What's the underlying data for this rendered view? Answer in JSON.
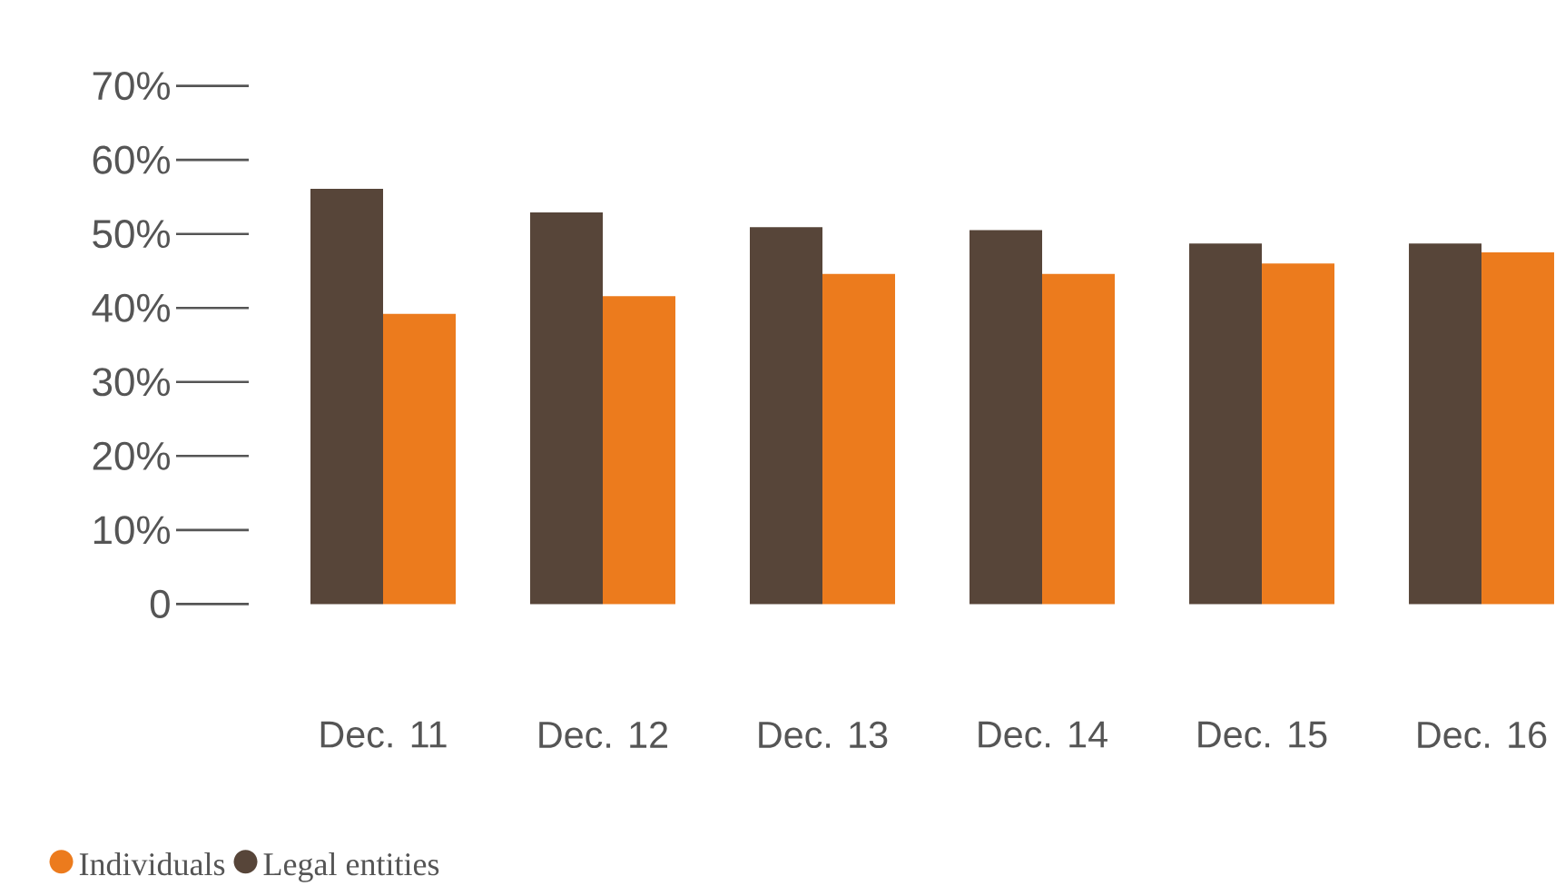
{
  "chart_data": {
    "type": "bar",
    "categories": [
      "Dec. 11",
      "Dec. 12",
      "Dec. 13",
      "Dec. 14",
      "Dec. 15",
      "Dec. 16"
    ],
    "series": [
      {
        "name": "Legal entities",
        "color": "#574539",
        "values": [
          56.1,
          52.9,
          50.9,
          50.5,
          48.7,
          48.7
        ]
      },
      {
        "name": "Individuals",
        "color": "#ec7b1d",
        "values": [
          39.2,
          41.6,
          44.6,
          44.6,
          46.0,
          47.5
        ]
      }
    ],
    "ylim": [
      0,
      70
    ],
    "yticks": [
      0,
      {
        "value": 10,
        "label": "10%"
      },
      {
        "value": 20,
        "label": "20%"
      },
      {
        "value": 30,
        "label": "30%"
      },
      {
        "value": 40,
        "label": "40%"
      },
      {
        "value": 50,
        "label": "50%"
      },
      {
        "value": 60,
        "label": "60%"
      },
      {
        "value": 70,
        "label": "70%"
      }
    ],
    "legend": "bottom left"
  }
}
